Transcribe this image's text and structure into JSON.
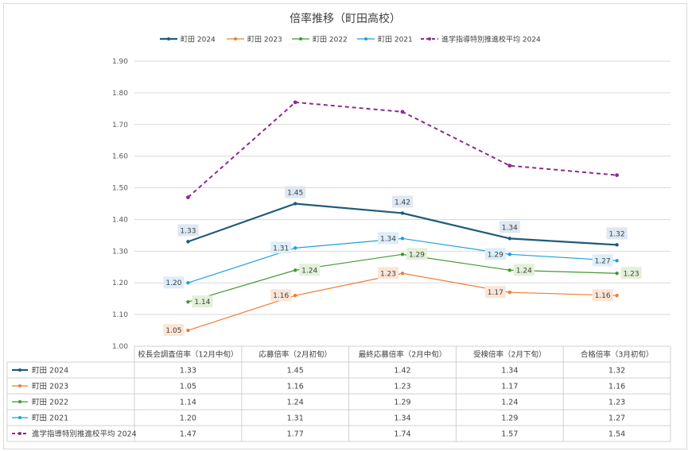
{
  "chart_data": {
    "type": "line",
    "title": "倍率推移（町田高校）",
    "categories": [
      "校長会調査倍率（12月中旬）",
      "応募倍率（2月初旬）",
      "最終応募倍率（2月中旬）",
      "受検倍率（2月下旬）",
      "合格倍率（3月初旬）"
    ],
    "ylim": [
      1.0,
      1.9
    ],
    "yticks": [
      "1.00",
      "1.10",
      "1.20",
      "1.30",
      "1.40",
      "1.50",
      "1.60",
      "1.70",
      "1.80",
      "1.90"
    ],
    "grid": true,
    "legend_position": "top",
    "data_table": true,
    "series": [
      {
        "name": "町田 2024",
        "values": [
          1.33,
          1.45,
          1.42,
          1.34,
          1.32
        ],
        "labels": [
          "1.33",
          "1.45",
          "1.42",
          "1.34",
          "1.32"
        ],
        "color": "#1f5c7a",
        "label_bg": "#dde8f2",
        "dash": false,
        "width": 2.2,
        "show_labels": true,
        "label_pos": "above"
      },
      {
        "name": "町田 2023",
        "values": [
          1.05,
          1.16,
          1.23,
          1.17,
          1.16
        ],
        "labels": [
          "1.05",
          "1.16",
          "1.23",
          "1.17",
          "1.16"
        ],
        "color": "#ed7d31",
        "label_bg": "#fbe5d6",
        "dash": false,
        "width": 1.2,
        "show_labels": true,
        "label_pos": "left"
      },
      {
        "name": "町田 2022",
        "values": [
          1.14,
          1.24,
          1.29,
          1.24,
          1.23
        ],
        "labels": [
          "1.14",
          "1.24",
          "1.29",
          "1.24",
          "1.23"
        ],
        "color": "#3f9a2f",
        "label_bg": "#e2f0d9",
        "dash": false,
        "width": 1.2,
        "show_labels": true,
        "label_pos": "right"
      },
      {
        "name": "町田 2021",
        "values": [
          1.2,
          1.31,
          1.34,
          1.29,
          1.27
        ],
        "labels": [
          "1.20",
          "1.31",
          "1.34",
          "1.29",
          "1.27"
        ],
        "color": "#1ba1d9",
        "label_bg": "#dbeef9",
        "dash": false,
        "width": 1.2,
        "show_labels": true,
        "label_pos": "left"
      },
      {
        "name": "進学指導特別推進校平均 2024",
        "values": [
          1.47,
          1.77,
          1.74,
          1.57,
          1.54
        ],
        "labels": [
          "1.47",
          "1.77",
          "1.74",
          "1.57",
          "1.54"
        ],
        "color": "#8e2a8e",
        "label_bg": "#ffffff",
        "dash": true,
        "width": 2.0,
        "show_labels": false,
        "label_pos": "none"
      }
    ]
  }
}
